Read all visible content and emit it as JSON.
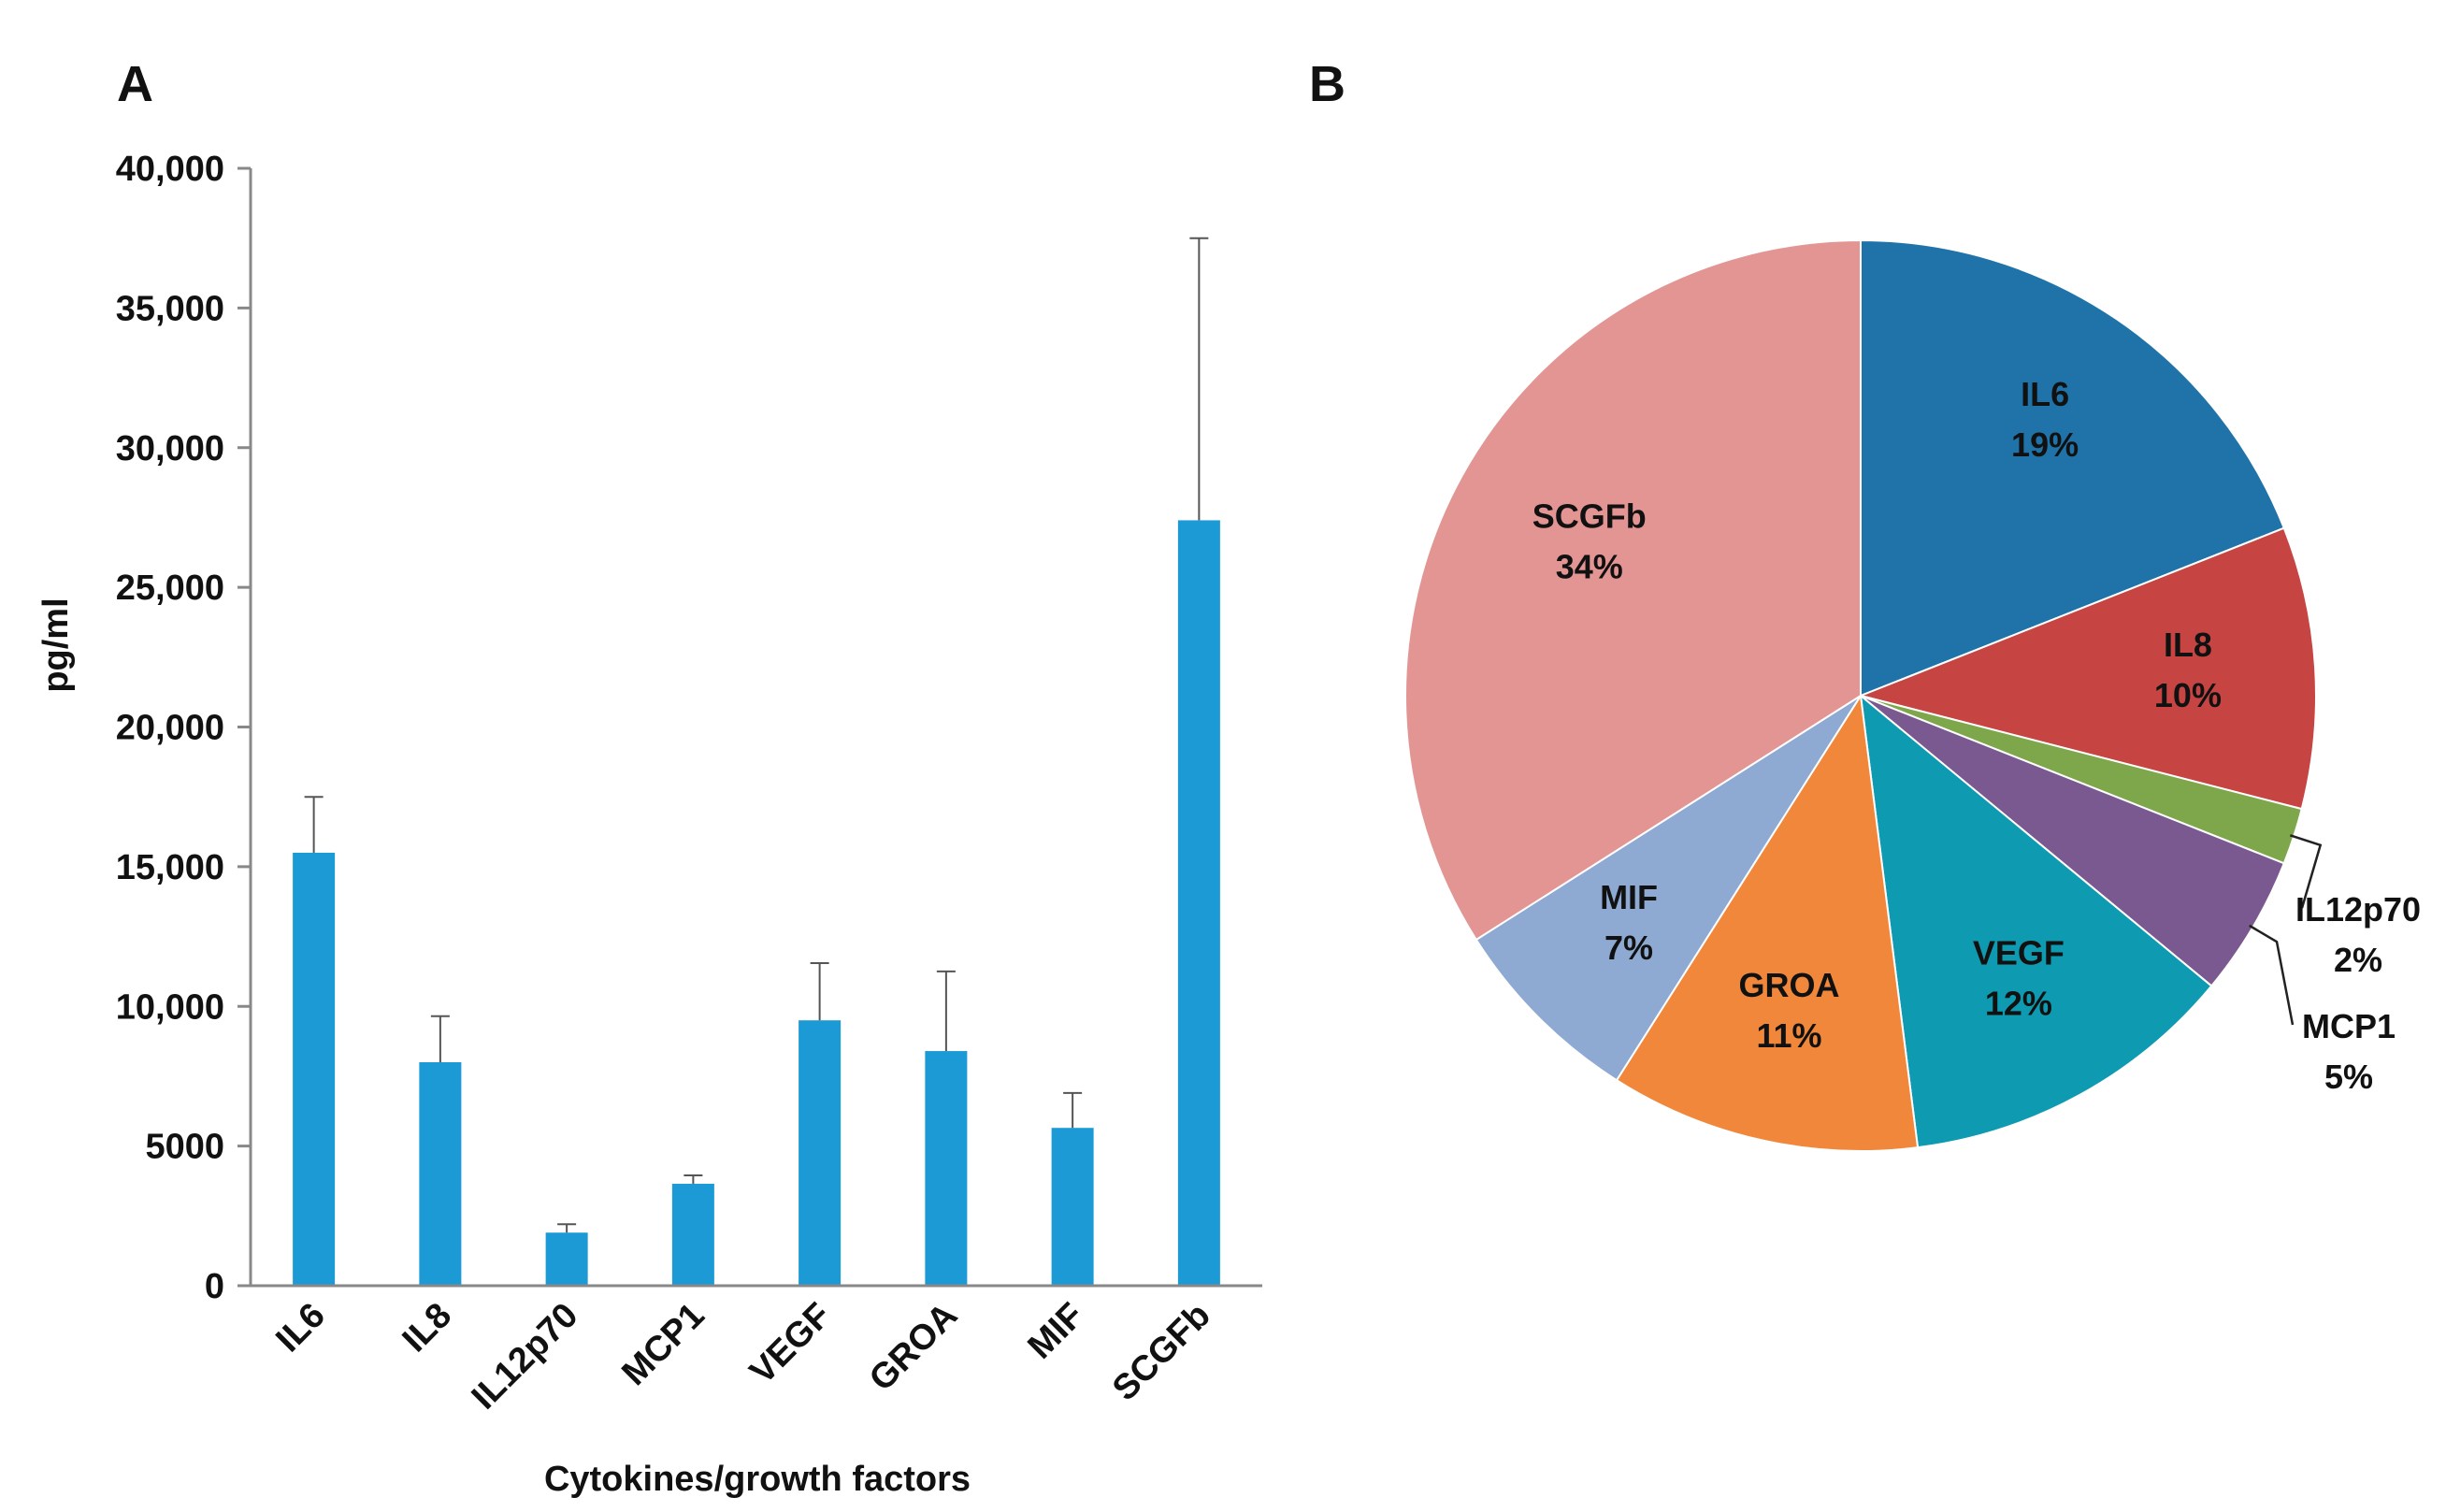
{
  "panels": {
    "a": "A",
    "b": "B"
  },
  "colors": {
    "bar": "#1b9ad6",
    "axis": "#888888",
    "errorbar": "#555555",
    "text": "#111111"
  },
  "chart_data": [
    {
      "type": "bar",
      "title": "",
      "xlabel": "Cytokines/growth factors",
      "ylabel": "pg/ml",
      "ylim": [
        0,
        40000
      ],
      "ytick_values": [
        0,
        5000,
        10000,
        15000,
        20000,
        25000,
        30000,
        35000,
        40000
      ],
      "ytick_labels": [
        "0",
        "5000",
        "10,000",
        "15,000",
        "20,000",
        "25,000",
        "30,000",
        "35,000",
        "40,000"
      ],
      "categories": [
        "IL6",
        "IL8",
        "IL12p70",
        "MCP1",
        "VEGF",
        "GROA",
        "MIF",
        "SCGFb"
      ],
      "values": [
        15500,
        8000,
        1900,
        3650,
        9500,
        8400,
        5650,
        27400
      ],
      "errors": [
        2000,
        1650,
        300,
        300,
        2050,
        2850,
        1250,
        10100
      ],
      "grid": false
    },
    {
      "type": "pie",
      "title": "",
      "slices": [
        {
          "label": "IL6",
          "percent_label": "19%",
          "value": 19,
          "color": "#1f73a8"
        },
        {
          "label": "IL8",
          "percent_label": "10%",
          "value": 10,
          "color": "#c64543"
        },
        {
          "label": "IL12p70",
          "percent_label": "2%",
          "value": 2,
          "color": "#7ea64a"
        },
        {
          "label": "MCP1",
          "percent_label": "5%",
          "value": 5,
          "color": "#7a5890"
        },
        {
          "label": "VEGF",
          "percent_label": "12%",
          "value": 12,
          "color": "#0e9bb1"
        },
        {
          "label": "GROA",
          "percent_label": "11%",
          "value": 11,
          "color": "#f0873a"
        },
        {
          "label": "MIF",
          "percent_label": "7%",
          "value": 7,
          "color": "#8faad2"
        },
        {
          "label": "SCGFb",
          "percent_label": "34%",
          "value": 34,
          "color": "#e39593"
        }
      ]
    }
  ]
}
